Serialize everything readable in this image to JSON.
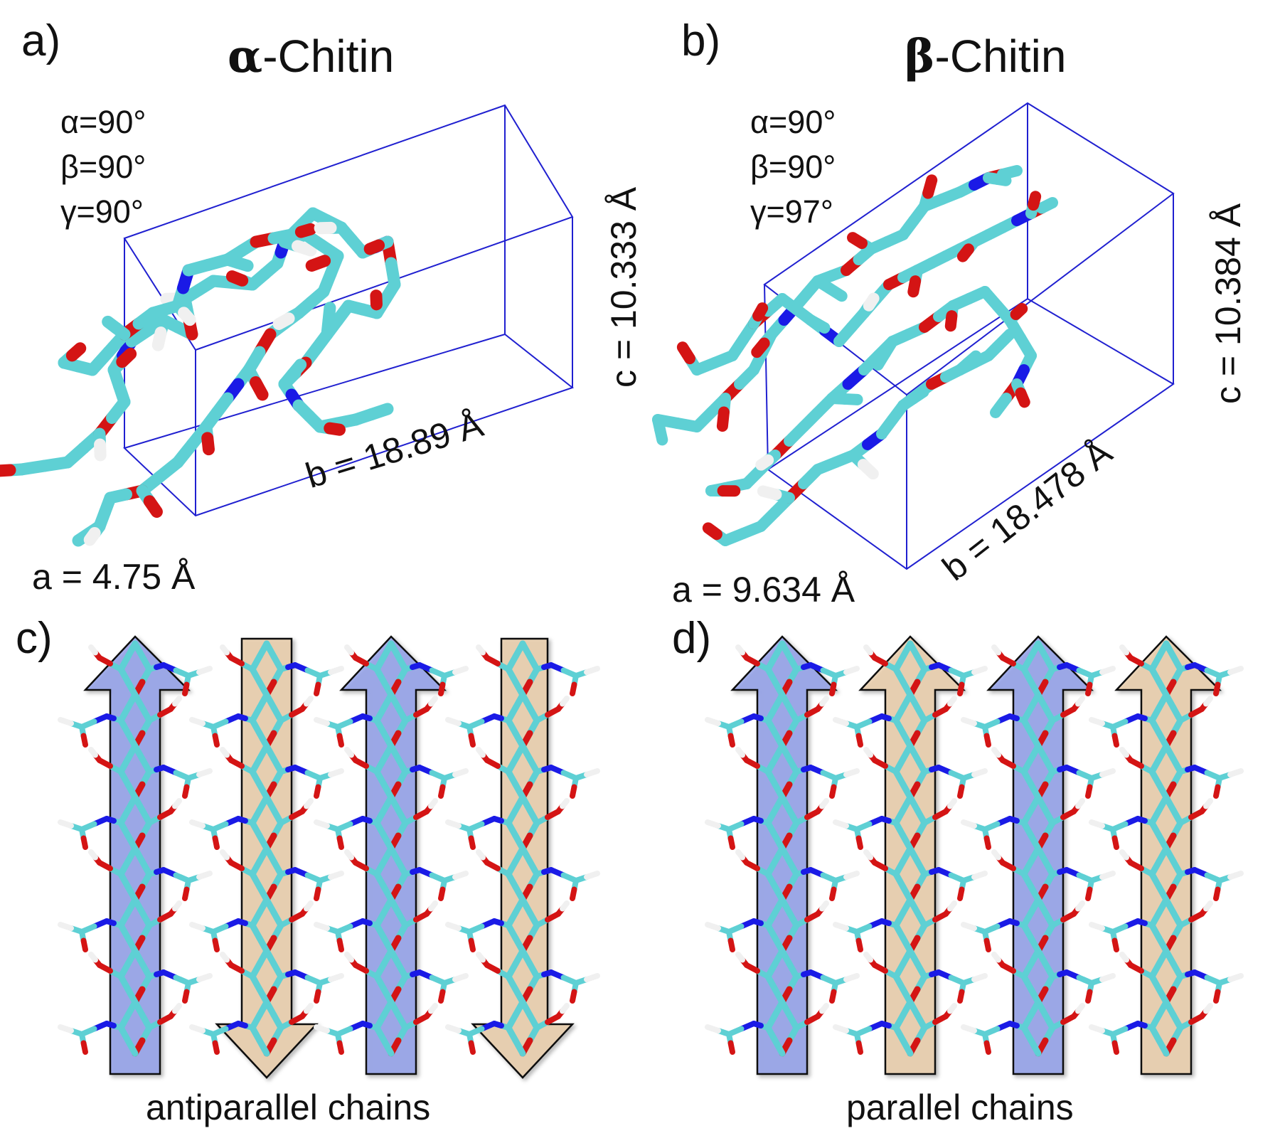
{
  "panels": {
    "a": {
      "label": "a)",
      "title_prefix": "α",
      "title_suffix": "-Chitin",
      "angles": [
        "α=90°",
        "β=90°",
        "γ=90°"
      ],
      "dim_a": "a = 4.75 Å",
      "dim_b": "b = 18.89 Å",
      "dim_c": "c = 10.333 Å"
    },
    "b": {
      "label": "b)",
      "title_prefix": "β",
      "title_suffix": "-Chitin",
      "angles": [
        "α=90°",
        "β=90°",
        "γ=97°"
      ],
      "dim_a": "a = 9.634 Å",
      "dim_b": "b = 18.478 Å",
      "dim_c": "c = 10.384 Å"
    },
    "c": {
      "label": "c)",
      "caption": "antiparallel chains"
    },
    "d": {
      "label": "d)",
      "caption": "parallel chains"
    }
  },
  "colors": {
    "cell_edges": "#2020d0",
    "carbon": "#5ed0d4",
    "oxygen": "#d41414",
    "nitrogen": "#1a1ae6",
    "hydrogen": "#f0f0f0",
    "blue_arrow": "#7d8fe8",
    "tan_arrow": "#e8c9a0"
  }
}
